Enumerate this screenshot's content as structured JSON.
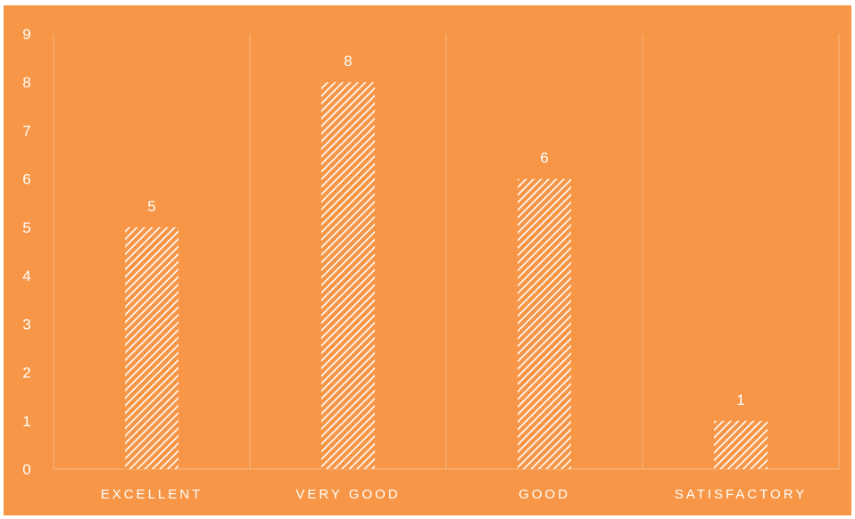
{
  "chart_data": {
    "type": "bar",
    "categories": [
      "EXCELLENT",
      "VERY GOOD",
      "GOOD",
      "SATISFACTORY"
    ],
    "values": [
      5,
      8,
      6,
      1
    ],
    "data_labels": [
      "5",
      "8",
      "6",
      "1"
    ],
    "y_ticks": [
      "0",
      "1",
      "2",
      "3",
      "4",
      "5",
      "6",
      "7",
      "8",
      "9"
    ],
    "ylim": [
      0,
      9
    ],
    "title": "",
    "xlabel": "",
    "ylabel": "",
    "grid": "vertical category separators",
    "legend": "none",
    "colors": {
      "background": "#F79646",
      "bar_hatch": "#FFFFFF",
      "grid": "#FAB784",
      "text": "#FFFFFF"
    },
    "bar_pattern": "diagonal hatch"
  }
}
